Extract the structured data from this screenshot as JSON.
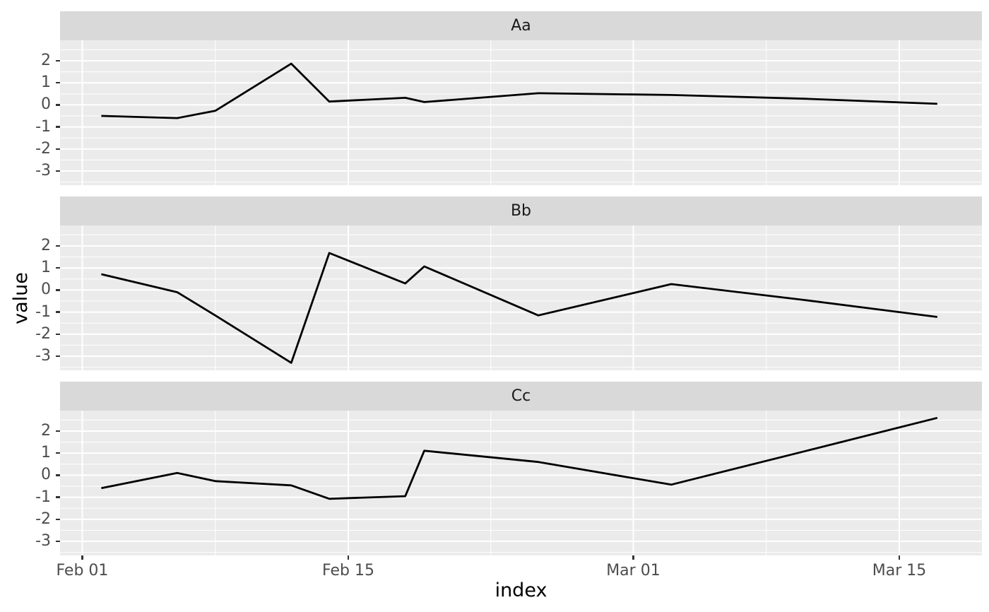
{
  "chart_data": {
    "type": "line",
    "title": "",
    "xlabel": "index",
    "ylabel": "value",
    "facets": [
      "Aa",
      "Bb",
      "Cc"
    ],
    "x_dates": [
      "Feb 02",
      "Feb 06",
      "Feb 08",
      "Feb 12",
      "Feb 14",
      "Feb 18",
      "Feb 19",
      "Feb 25",
      "Mar 03",
      "Mar 10",
      "Mar 17"
    ],
    "x_days": [
      1,
      5,
      7,
      11,
      13,
      17,
      18,
      24,
      31,
      38,
      45
    ],
    "series": [
      {
        "name": "Aa",
        "values": [
          -0.5,
          -0.6,
          -0.27,
          1.87,
          0.15,
          0.32,
          0.13,
          0.53,
          0.45,
          0.28,
          0.05
        ]
      },
      {
        "name": "Bb",
        "values": [
          0.72,
          -0.1,
          -1.15,
          -3.3,
          1.68,
          0.3,
          1.07,
          -1.15,
          0.27,
          -0.45,
          -1.22
        ]
      },
      {
        "name": "Cc",
        "values": [
          -0.59,
          0.1,
          -0.27,
          -0.46,
          -1.07,
          -0.95,
          1.11,
          0.6,
          -0.43,
          1.08,
          2.6
        ]
      }
    ],
    "x_ticks": {
      "labels": [
        "Feb 01",
        "Feb 15",
        "Mar 01",
        "Mar 15"
      ],
      "days": [
        0,
        14,
        29,
        43
      ]
    },
    "x_minor_days": [
      7,
      21.5,
      36
    ],
    "y_ticks": [
      "2",
      "1",
      "0",
      "-1",
      "-2",
      "-3"
    ],
    "y_tick_values": [
      2,
      1,
      0,
      -1,
      -2,
      -3
    ],
    "y_minor_values": [
      2.5,
      1.5,
      0.5,
      -0.5,
      -1.5,
      -2.5,
      -3.5
    ],
    "ylim": [
      -3.64,
      2.93
    ],
    "xlim_days": [
      -1.17,
      47.35
    ],
    "legend": "none",
    "grid": "white major and minor gridlines on grey panel",
    "colors": {
      "line": "#000000",
      "panel_bg": "#EBEBEB",
      "strip_bg": "#D9D9D9",
      "gridline": "#FFFFFF",
      "tick_mark": "#333333",
      "tick_label": "#4D4D4D",
      "axis_title": "#000000",
      "strip_text": "#1A1A1A"
    }
  }
}
